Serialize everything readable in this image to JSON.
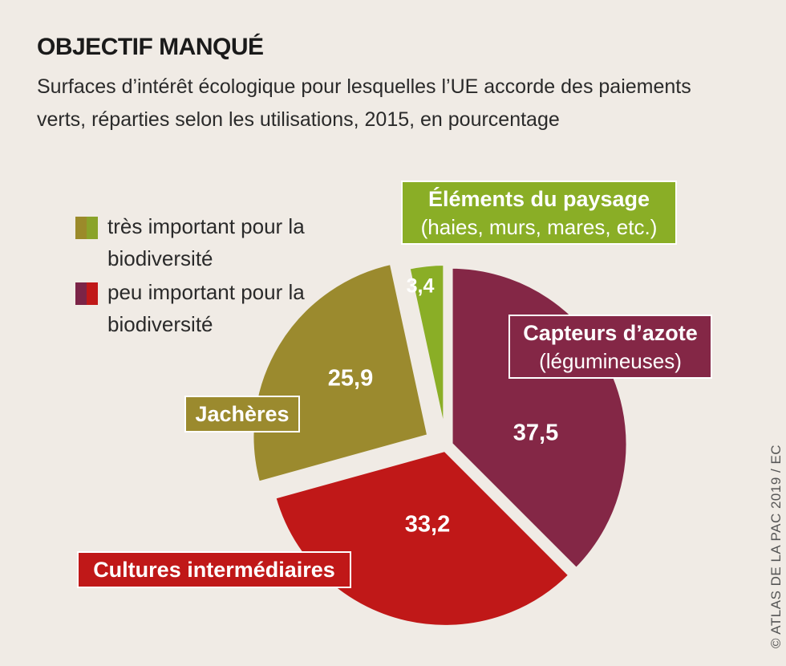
{
  "title": "OBJECTIF MANQUÉ",
  "subtitle": "Surfaces d’intérêt écologique pour lesquelles l’UE accorde des paiements verts, réparties selon les utilisations, 2015, en pourcentage",
  "legend": [
    {
      "label": "très important pour la biodiversité",
      "colors": [
        "#9b8a2a",
        "#8aa32a"
      ]
    },
    {
      "label": "peu important pour la biodiversité",
      "colors": [
        "#7b2447",
        "#c01818"
      ]
    }
  ],
  "credit": "© ATLAS DE LA PAC 2019 / EC",
  "colors": {
    "elements": "#8aae26",
    "capteurs": "#842746",
    "cultures": "#c01818",
    "jacheres": "#9b8a2e"
  },
  "chart_data": {
    "type": "pie",
    "title": "OBJECTIF MANQUÉ",
    "slices": [
      {
        "name": "Éléments du paysage",
        "sublabel": "(haies, murs, mares, etc.)",
        "value": 3.4,
        "value_label": "3,4",
        "color": "#8aae26",
        "group": "très important pour la biodiversité"
      },
      {
        "name": "Capteurs d’azote",
        "sublabel": "(légumineuses)",
        "value": 37.5,
        "value_label": "37,5",
        "color": "#842746",
        "group": "peu important pour la biodiversité"
      },
      {
        "name": "Cultures intermédiaires",
        "sublabel": "",
        "value": 33.2,
        "value_label": "33,2",
        "color": "#c01818",
        "group": "peu important pour la biodiversité"
      },
      {
        "name": "Jachères",
        "sublabel": "",
        "value": 25.9,
        "value_label": "25,9",
        "color": "#9b8a2e",
        "group": "très important pour la biodiversité"
      }
    ]
  }
}
